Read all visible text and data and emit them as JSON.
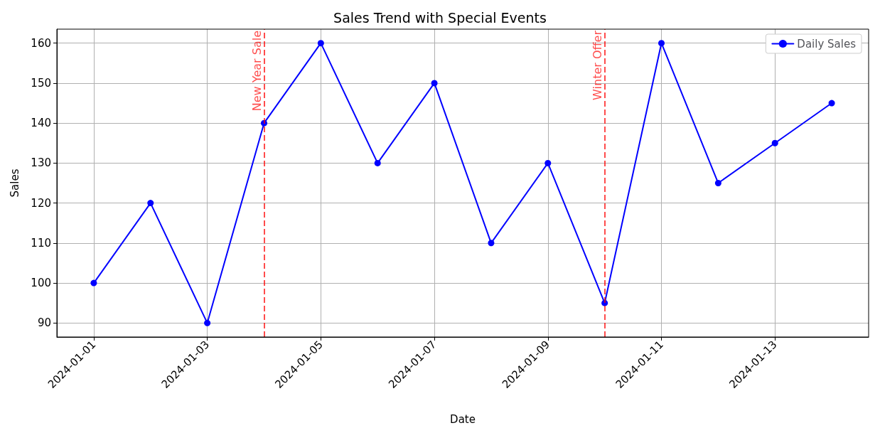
{
  "chart_data": {
    "type": "line",
    "title": "Sales Trend with Special Events",
    "xlabel": "Date",
    "ylabel": "Sales",
    "x": [
      "2024-01-01",
      "2024-01-02",
      "2024-01-03",
      "2024-01-04",
      "2024-01-05",
      "2024-01-06",
      "2024-01-07",
      "2024-01-08",
      "2024-01-09",
      "2024-01-10",
      "2024-01-11",
      "2024-01-12",
      "2024-01-13",
      "2024-01-14"
    ],
    "series": [
      {
        "name": "Daily Sales",
        "color": "#0000ff",
        "values": [
          100,
          120,
          90,
          140,
          160,
          130,
          150,
          110,
          130,
          95,
          160,
          125,
          135,
          145
        ]
      }
    ],
    "xlim": [
      "2023-12-31T08:24",
      "2024-01-14T15:36"
    ],
    "xticks": [
      "2024-01-01",
      "2024-01-03",
      "2024-01-05",
      "2024-01-07",
      "2024-01-09",
      "2024-01-11",
      "2024-01-13"
    ],
    "ylim": [
      86.5,
      163.5
    ],
    "yticks": [
      90,
      100,
      110,
      120,
      130,
      140,
      150,
      160
    ],
    "ref_lines": [
      {
        "axis": "x",
        "value": "2024-01-04",
        "label": "New Year Sale",
        "color": "#ff0000",
        "line_style": "dashed"
      },
      {
        "axis": "x",
        "value": "2024-01-10",
        "label": "Winter Offer",
        "color": "#ff0000",
        "line_style": "dashed"
      }
    ],
    "grid": true,
    "legend": "top right",
    "marker": "circle",
    "line_style": "solid"
  }
}
